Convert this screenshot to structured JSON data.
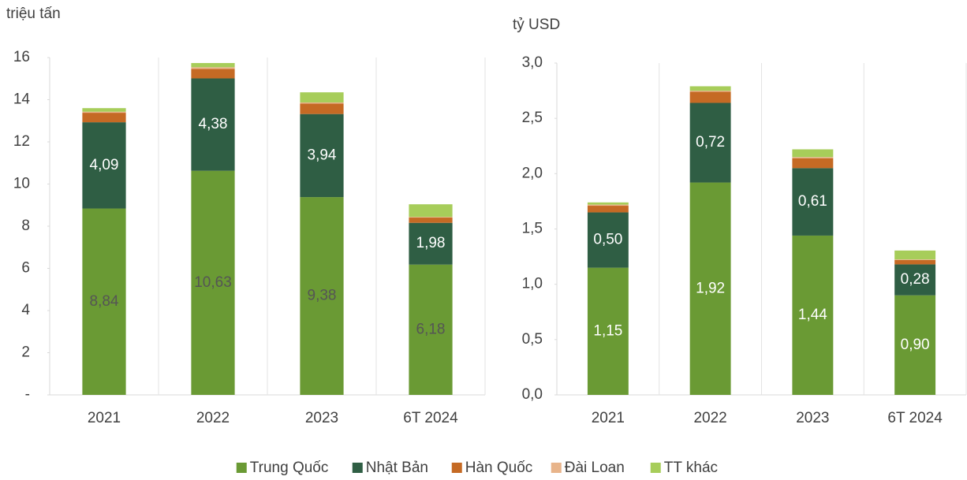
{
  "chart_data": [
    {
      "type": "bar",
      "stacked": true,
      "y_label": "triệu tấn",
      "categories": [
        "2021",
        "2022",
        "2023",
        "6T 2024"
      ],
      "ylim": [
        0,
        16
      ],
      "yticks": [
        {
          "value": 0,
          "label": "-"
        },
        2,
        4,
        6,
        8,
        10,
        12,
        14,
        16
      ],
      "series": [
        {
          "name": "Trung Quốc",
          "color": "#6a9a34",
          "values": [
            8.84,
            10.63,
            9.38,
            6.18
          ],
          "value_labels": [
            "8,84",
            "10,63",
            "9,38",
            "6,18"
          ]
        },
        {
          "name": "Nhật Bản",
          "color": "#2f5e44",
          "values": [
            4.09,
            4.38,
            3.94,
            1.98
          ],
          "value_labels": [
            "4,09",
            "4,38",
            "3,94",
            "1,98"
          ]
        },
        {
          "name": "Hàn Quốc",
          "color": "#c56a24",
          "values": [
            0.45,
            0.45,
            0.5,
            0.25
          ]
        },
        {
          "name": "Đài Loan",
          "color": "#e8b48a",
          "values": [
            0.05,
            0.08,
            0.05,
            0.03
          ]
        },
        {
          "name": "TT khác",
          "color": "#a7cd5a",
          "values": [
            0.17,
            0.2,
            0.48,
            0.6
          ]
        }
      ]
    },
    {
      "type": "bar",
      "stacked": true,
      "y_label": "tỷ USD",
      "categories": [
        "2021",
        "2022",
        "2023",
        "6T 2024"
      ],
      "ylim": [
        0,
        3
      ],
      "yticks": [
        {
          "value": 0,
          "label": "0,0"
        },
        {
          "value": 0.5,
          "label": "0,5"
        },
        {
          "value": 1,
          "label": "1,0"
        },
        {
          "value": 1.5,
          "label": "1,5"
        },
        {
          "value": 2,
          "label": "2,0"
        },
        {
          "value": 2.5,
          "label": "2,5"
        },
        {
          "value": 3,
          "label": "3,0"
        }
      ],
      "series": [
        {
          "name": "Trung Quốc",
          "color": "#6a9a34",
          "values": [
            1.15,
            1.92,
            1.44,
            0.9
          ],
          "value_labels": [
            "1,15",
            "1,92",
            "1,44",
            "0,90"
          ]
        },
        {
          "name": "Nhật Bản",
          "color": "#2f5e44",
          "values": [
            0.5,
            0.72,
            0.61,
            0.28
          ],
          "value_labels": [
            "0,50",
            "0,72",
            "0,61",
            "0,28"
          ]
        },
        {
          "name": "Hàn Quốc",
          "color": "#c56a24",
          "values": [
            0.06,
            0.1,
            0.09,
            0.04
          ]
        },
        {
          "name": "Đài Loan",
          "color": "#e8b48a",
          "values": [
            0.01,
            0.01,
            0.01,
            0.005
          ]
        },
        {
          "name": "TT khác",
          "color": "#a7cd5a",
          "values": [
            0.02,
            0.04,
            0.07,
            0.08
          ]
        }
      ]
    }
  ]
}
